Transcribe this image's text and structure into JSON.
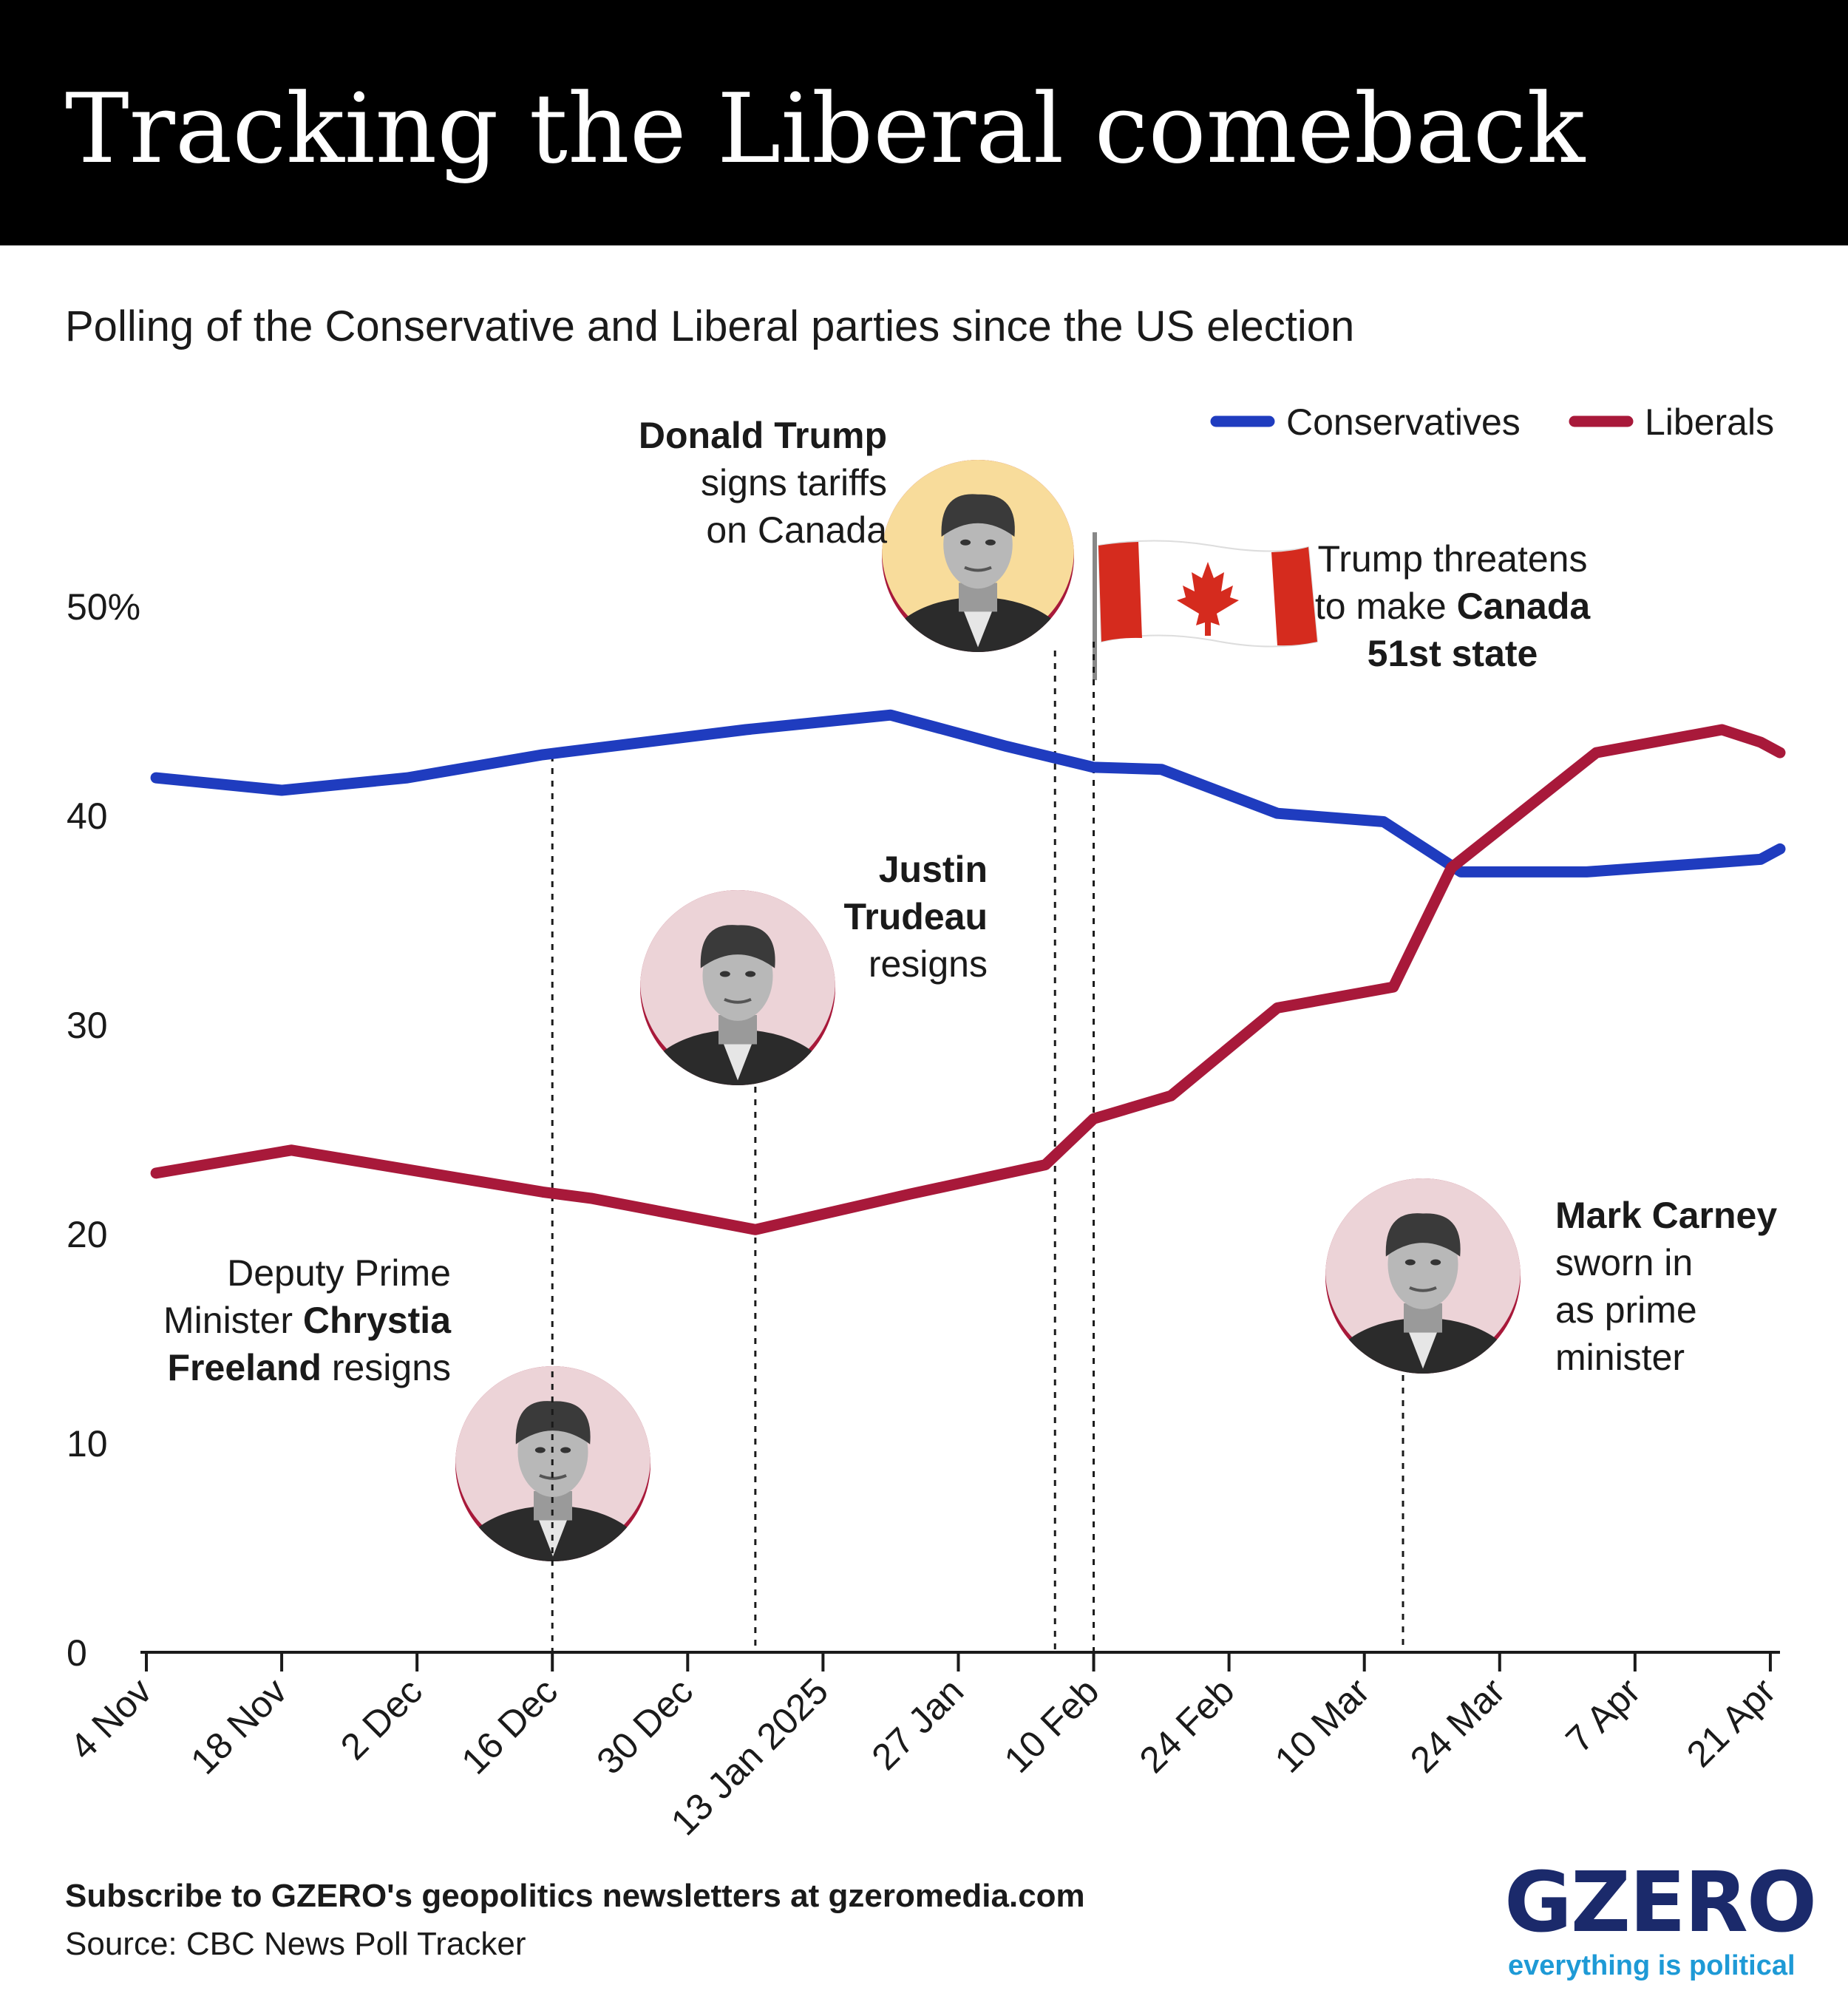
{
  "header": {
    "title": "Tracking the Liberal comeback",
    "subtitle": "Polling of the Conservative and Liberal parties since the US election"
  },
  "chart_data": {
    "type": "line",
    "title": "Tracking the Liberal comeback",
    "subtitle": "Polling of the Conservative and Liberal parties since the US election",
    "xlabel": "",
    "ylabel": "",
    "x_start": "2024-11-04",
    "x_end": "2025-04-22",
    "ylim": [
      0,
      50
    ],
    "y_ticks": [
      "0",
      "10",
      "20",
      "30",
      "40",
      "50%"
    ],
    "x_ticks": [
      "4 Nov",
      "18 Nov",
      "2 Dec",
      "16 Dec",
      "30 Dec",
      "13 Jan 2025",
      "27 Jan",
      "10 Feb",
      "24 Feb",
      "10 Mar",
      "24 Mar",
      "7 Apr",
      "21 Apr"
    ],
    "x_tick_dates": [
      "2024-11-04",
      "2024-11-18",
      "2024-12-02",
      "2024-12-16",
      "2024-12-30",
      "2025-01-13",
      "2025-01-27",
      "2025-02-10",
      "2025-02-24",
      "2025-03-10",
      "2025-03-24",
      "2025-04-07",
      "2025-04-21"
    ],
    "grid": false,
    "legend_position": "top-right",
    "series": [
      {
        "name": "Conservatives",
        "color": "#1f3cbf",
        "points": [
          {
            "x": "2024-11-05",
            "y": 41.8
          },
          {
            "x": "2024-11-18",
            "y": 41.2
          },
          {
            "x": "2024-12-01",
            "y": 41.8
          },
          {
            "x": "2024-12-15",
            "y": 42.9
          },
          {
            "x": "2025-01-05",
            "y": 44.1
          },
          {
            "x": "2025-01-20",
            "y": 44.8
          },
          {
            "x": "2025-02-01",
            "y": 43.3
          },
          {
            "x": "2025-02-10",
            "y": 42.3
          },
          {
            "x": "2025-02-17",
            "y": 42.2
          },
          {
            "x": "2025-03-01",
            "y": 40.1
          },
          {
            "x": "2025-03-12",
            "y": 39.7
          },
          {
            "x": "2025-03-20",
            "y": 37.3
          },
          {
            "x": "2025-04-02",
            "y": 37.3
          },
          {
            "x": "2025-04-14",
            "y": 37.7
          },
          {
            "x": "2025-04-20",
            "y": 37.9
          },
          {
            "x": "2025-04-22",
            "y": 38.4
          }
        ]
      },
      {
        "name": "Liberals",
        "color": "#a8193a",
        "points": [
          {
            "x": "2024-11-05",
            "y": 22.9
          },
          {
            "x": "2024-11-19",
            "y": 24.0
          },
          {
            "x": "2024-12-15",
            "y": 22.0
          },
          {
            "x": "2024-12-20",
            "y": 21.7
          },
          {
            "x": "2025-01-06",
            "y": 20.2
          },
          {
            "x": "2025-01-22",
            "y": 21.9
          },
          {
            "x": "2025-02-05",
            "y": 23.3
          },
          {
            "x": "2025-02-10",
            "y": 25.5
          },
          {
            "x": "2025-02-18",
            "y": 26.6
          },
          {
            "x": "2025-03-01",
            "y": 30.8
          },
          {
            "x": "2025-03-13",
            "y": 31.8
          },
          {
            "x": "2025-03-19",
            "y": 37.5
          },
          {
            "x": "2025-04-03",
            "y": 43.0
          },
          {
            "x": "2025-04-16",
            "y": 44.1
          },
          {
            "x": "2025-04-20",
            "y": 43.5
          },
          {
            "x": "2025-04-22",
            "y": 43.0
          }
        ]
      }
    ],
    "events": [
      {
        "id": "freeland",
        "x": "2024-12-16",
        "lines": [
          [
            "Deputy Prime"
          ],
          [
            "Minister ",
            "*Chrystia"
          ],
          [
            "*Freeland",
            " resigns"
          ]
        ]
      },
      {
        "id": "trudeau",
        "x": "2025-01-06",
        "lines": [
          [
            "*Justin"
          ],
          [
            "*Trudeau"
          ],
          [
            "resigns"
          ]
        ]
      },
      {
        "id": "trump-tariffs",
        "x": "2025-02-06",
        "lines": [
          [
            "*Donald Trump"
          ],
          [
            "signs tariffs"
          ],
          [
            "on Canada"
          ]
        ]
      },
      {
        "id": "51st-state",
        "x": "2025-02-10",
        "lines": [
          [
            "Trump threatens"
          ],
          [
            "to make ",
            "*Canada"
          ],
          [
            "*51st state"
          ]
        ]
      },
      {
        "id": "carney",
        "x": "2025-03-14",
        "lines": [
          [
            "*Mark Carney"
          ],
          [
            "sworn in"
          ],
          [
            "as prime"
          ],
          [
            "minister"
          ]
        ]
      }
    ]
  },
  "footer": {
    "subscribe": "Subscribe to GZERO's geopolitics newsletters at gzeromedia.com",
    "source": "Source: CBC News Poll Tracker",
    "logo": "GZERO",
    "tagline": "everything is political"
  },
  "icons": [
    "trump-photo",
    "trudeau-photo",
    "freeland-photo",
    "carney-photo",
    "canada-flag"
  ],
  "colors": {
    "conservatives": "#1f3cbf",
    "liberals": "#a8193a",
    "portrait_bg_pink": "#ecd3d7",
    "portrait_bg_yellow": "#f8dc9b",
    "logo_navy": "#1b2a6b",
    "logo_blue": "#1e9ad6"
  }
}
